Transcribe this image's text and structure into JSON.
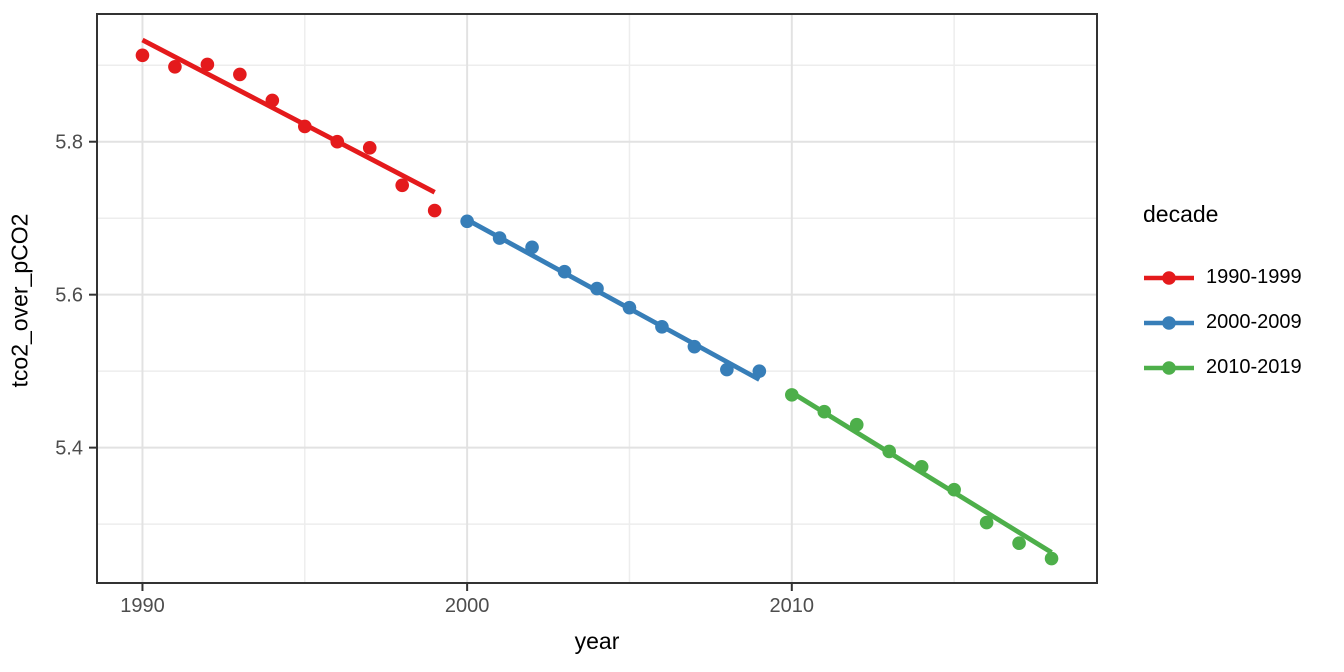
{
  "chart_data": {
    "type": "scatter",
    "title": "",
    "xlabel": "year",
    "ylabel": "tco2_over_pCO2",
    "grid": true,
    "legend": {
      "title": "decade",
      "position": "right"
    },
    "x_axis": {
      "range": [
        1988.6,
        2019.4
      ],
      "major_ticks": [
        {
          "value": 1990,
          "label": "1990"
        },
        {
          "value": 2000,
          "label": "2000"
        },
        {
          "value": 2010,
          "label": "2010"
        }
      ],
      "minor_ticks": [
        1995,
        2005,
        2015
      ]
    },
    "y_axis": {
      "range": [
        5.223,
        5.967
      ],
      "major_ticks": [
        {
          "value": 5.8,
          "label": "5.8"
        },
        {
          "value": 5.6,
          "label": "5.6"
        },
        {
          "value": 5.4,
          "label": "5.4"
        }
      ],
      "minor_ticks": [
        5.9,
        5.7,
        5.5,
        5.3
      ]
    },
    "series": [
      {
        "name": "1990-1999",
        "color": "#E41A1C",
        "x": [
          1990,
          1991,
          1992,
          1993,
          1994,
          1995,
          1996,
          1997,
          1998,
          1999
        ],
        "y": [
          5.913,
          5.898,
          5.901,
          5.888,
          5.854,
          5.82,
          5.8,
          5.792,
          5.743,
          5.71
        ],
        "trend": {
          "x": [
            1990,
            1999
          ],
          "y": [
            5.933,
            5.734
          ]
        }
      },
      {
        "name": "2000-2009",
        "color": "#377EB8",
        "x": [
          2000,
          2001,
          2002,
          2003,
          2004,
          2005,
          2006,
          2007,
          2008,
          2009
        ],
        "y": [
          5.696,
          5.674,
          5.662,
          5.63,
          5.608,
          5.583,
          5.558,
          5.532,
          5.502,
          5.5
        ],
        "trend": {
          "x": [
            2000,
            2009
          ],
          "y": [
            5.698,
            5.489
          ]
        }
      },
      {
        "name": "2010-2019",
        "color": "#4DAF4A",
        "x": [
          2010,
          2011,
          2012,
          2013,
          2014,
          2015,
          2016,
          2017,
          2018
        ],
        "y": [
          5.469,
          5.447,
          5.43,
          5.395,
          5.375,
          5.345,
          5.302,
          5.275,
          5.255
        ],
        "trend": {
          "x": [
            2010,
            2018
          ],
          "y": [
            5.472,
            5.263
          ]
        }
      }
    ]
  },
  "colors": {
    "background": "#FFFFFF",
    "panel_border": "#333333",
    "grid_major": "#E2E2E2",
    "grid_minor": "#EDEDED",
    "tick_mark": "#333333",
    "tick_label": "#4D4D4D",
    "axis_title": "#000000"
  }
}
